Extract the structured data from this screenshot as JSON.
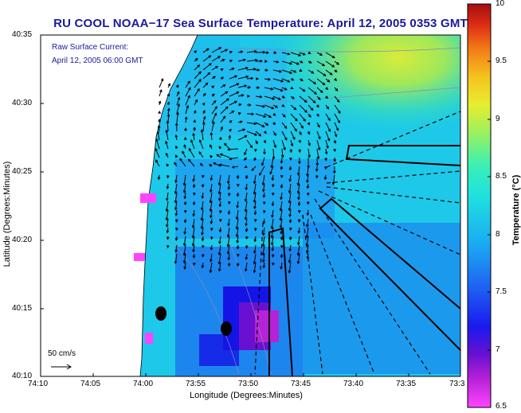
{
  "title": "RU COOL  NOAA−17  Sea Surface Temperature:  April 12, 2005 0353 GMT",
  "y_axis_label": "Latitude (Degrees:Minutes)",
  "x_axis_label": "Longitude (Degrees:Minutes)",
  "y_ticks": [
    "40:35",
    "40:30",
    "40:25",
    "40:20",
    "40:15",
    "40:10"
  ],
  "x_ticks": [
    "74:10",
    "74:05",
    "74:00",
    "73:55",
    "73:50",
    "73:45",
    "73:40",
    "73:35",
    "73:3"
  ],
  "legend": {
    "line1": "Raw Surface Current:",
    "line2": "April 12, 2005 06:00 GMT"
  },
  "scale_arrow_label": "50 cm/s",
  "colorbar": {
    "title": "Temperature (°C)",
    "min": 6.5,
    "max": 10,
    "tick_labels": [
      "10",
      "9.5",
      "9",
      "8.5",
      "8",
      "7.5",
      "7",
      "6.5"
    ]
  },
  "colors": {
    "title_text": "#1a1a9c",
    "land": "#ffffff",
    "arrow": "#000000"
  }
}
